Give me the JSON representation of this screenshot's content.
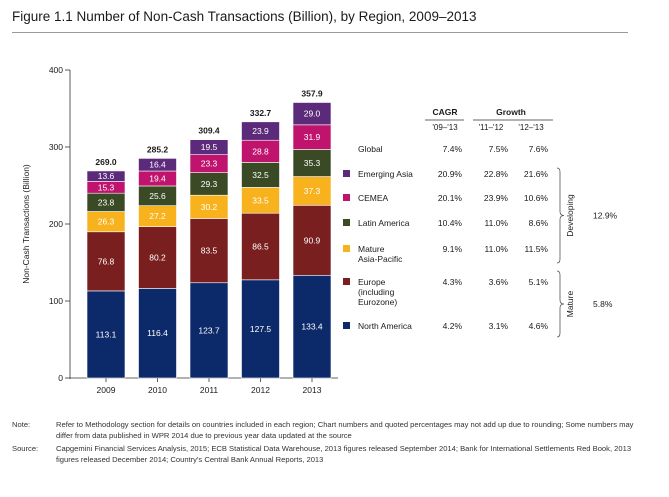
{
  "figure": {
    "title": "Figure 1.1   Number of Non-Cash Transactions (Billion), by Region, 2009–2013"
  },
  "chart_data": {
    "type": "bar",
    "stacked": true,
    "categories": [
      "2009",
      "2010",
      "2011",
      "2012",
      "2013"
    ],
    "ylabel": "Non-Cash Transactions (Billion)",
    "ylim": [
      0,
      400
    ],
    "yticks": [
      0,
      100,
      200,
      300,
      400
    ],
    "totals": [
      "269.0",
      "285.2",
      "309.4",
      "332.7",
      "357.9"
    ],
    "series": [
      {
        "name": "North America",
        "color": "#0c2a6a",
        "values": [
          113.1,
          116.4,
          123.7,
          127.5,
          133.4
        ],
        "labels": [
          "113.1",
          "116.4",
          "123.7",
          "127.5",
          "133.4"
        ],
        "label_color": "#ffffff"
      },
      {
        "name": "Europe (including Eurozone)",
        "color": "#7a1f1f",
        "values": [
          76.8,
          80.2,
          83.5,
          86.5,
          90.9
        ],
        "labels": [
          "76.8",
          "80.2",
          "83.5",
          "86.5",
          "90.9"
        ],
        "label_color": "#ffffff"
      },
      {
        "name": "Mature Asia-Pacific",
        "color": "#f7b21d",
        "values": [
          26.3,
          27.2,
          30.2,
          33.5,
          37.3
        ],
        "labels": [
          "26.3",
          "27.2",
          "30.2",
          "33.5",
          "37.3"
        ],
        "label_color": "#ffffff"
      },
      {
        "name": "Latin America",
        "color": "#3a4a24",
        "values": [
          23.8,
          25.6,
          29.3,
          32.5,
          35.3
        ],
        "labels": [
          "23.8",
          "25.6",
          "29.3",
          "32.5",
          "35.3"
        ],
        "label_color": "#ffffff"
      },
      {
        "name": "CEMEA",
        "color": "#c0136e",
        "values": [
          15.3,
          19.4,
          23.3,
          28.8,
          31.9
        ],
        "labels": [
          "15.3",
          "19.4",
          "23.3",
          "28.8",
          "31.9"
        ],
        "label_color": "#ffffff"
      },
      {
        "name": "Emerging Asia",
        "color": "#5b2a7a",
        "values": [
          13.6,
          16.4,
          19.5,
          23.9,
          29.0
        ],
        "labels": [
          "13.6",
          "16.4",
          "19.5",
          "23.9",
          "29.0"
        ],
        "label_color": "#ffffff"
      }
    ],
    "table": {
      "headers": {
        "cagr": "CAGR",
        "growth": "Growth",
        "col1": "'09–'13",
        "col2": "'11–'12",
        "col3": "'12–'13"
      },
      "rows": [
        {
          "name": "Global",
          "lines": [
            "Global"
          ],
          "color": "",
          "cagr": "7.4%",
          "g1": "7.5%",
          "g2": "7.6%"
        },
        {
          "name": "Emerging Asia",
          "lines": [
            "Emerging Asia"
          ],
          "color": "#5b2a7a",
          "cagr": "20.9%",
          "g1": "22.8%",
          "g2": "21.6%"
        },
        {
          "name": "CEMEA",
          "lines": [
            "CEMEA"
          ],
          "color": "#c0136e",
          "cagr": "20.1%",
          "g1": "23.9%",
          "g2": "10.6%"
        },
        {
          "name": "Latin America",
          "lines": [
            "Latin America"
          ],
          "color": "#3a4a24",
          "cagr": "10.4%",
          "g1": "11.0%",
          "g2": "8.6%"
        },
        {
          "name": "Mature Asia-Pacific",
          "lines": [
            "Mature",
            "Asia-Pacific"
          ],
          "color": "#f7b21d",
          "cagr": "9.1%",
          "g1": "11.0%",
          "g2": "11.5%"
        },
        {
          "name": "Europe (including Eurozone)",
          "lines": [
            "Europe",
            "(including",
            "Eurozone)"
          ],
          "color": "#7a1f1f",
          "cagr": "4.3%",
          "g1": "3.6%",
          "g2": "5.1%"
        },
        {
          "name": "North America",
          "lines": [
            "North America"
          ],
          "color": "#0c2a6a",
          "cagr": "4.2%",
          "g1": "3.1%",
          "g2": "4.6%"
        }
      ],
      "groups": [
        {
          "name": "Developing",
          "value": "12.9%"
        },
        {
          "name": "Mature",
          "value": "5.8%"
        }
      ]
    }
  },
  "notes": {
    "note_label": "Note:",
    "note_text": "Refer to Methodology section for details on countries included in each region; Chart numbers and quoted percentages may not add up due to rounding; Some numbers may differ from data published in WPR 2014 due to previous year data updated at the source",
    "source_label": "Source:",
    "source_text": "Capgemini Financial Services Analysis, 2015; ECB Statistical Data Warehouse, 2013 figures released September 2014; Bank for International Settlements Red Book, 2013 figures released December 2014; Country's Central Bank Annual Reports, 2013"
  }
}
